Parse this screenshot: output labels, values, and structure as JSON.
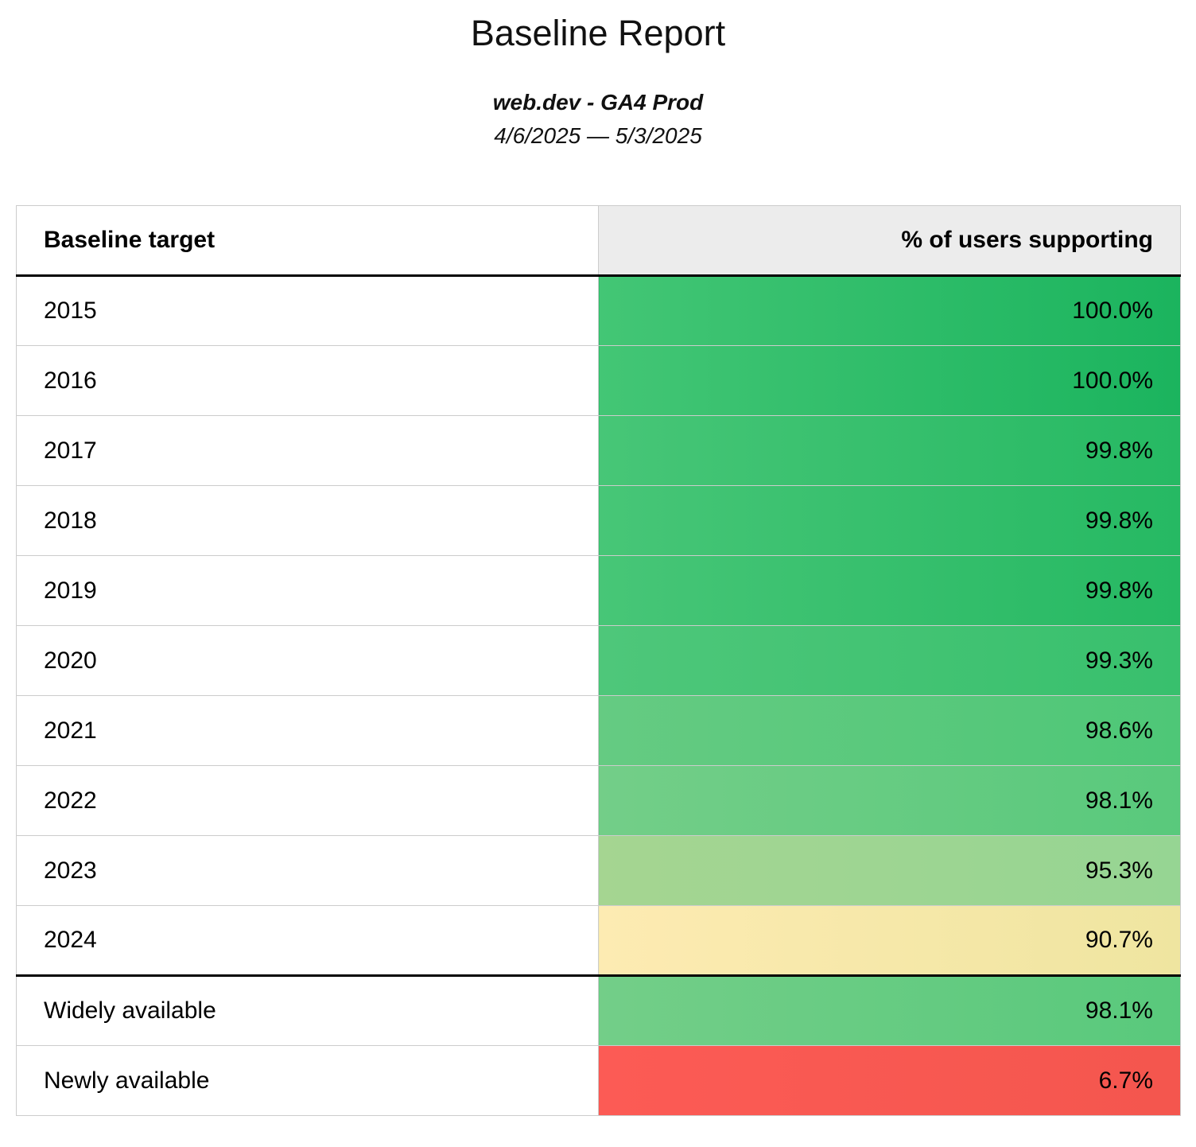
{
  "report": {
    "title": "Baseline Report",
    "subtitle": "web.dev - GA4 Prod",
    "date_range": "4/6/2025 — 5/3/2025"
  },
  "table": {
    "columns": [
      "Baseline target",
      "% of users supporting"
    ],
    "rows": [
      {
        "label": "2015",
        "value": "100.0%",
        "pct": 100.0,
        "color_left": "#43c675",
        "color_right": "#1bb45e",
        "section_end": false
      },
      {
        "label": "2016",
        "value": "100.0%",
        "pct": 100.0,
        "color_left": "#43c675",
        "color_right": "#1bb45e",
        "section_end": false
      },
      {
        "label": "2017",
        "value": "99.8%",
        "pct": 99.8,
        "color_left": "#47c677",
        "color_right": "#26b963",
        "section_end": false
      },
      {
        "label": "2018",
        "value": "99.8%",
        "pct": 99.8,
        "color_left": "#47c677",
        "color_right": "#26b963",
        "section_end": false
      },
      {
        "label": "2019",
        "value": "99.8%",
        "pct": 99.8,
        "color_left": "#47c677",
        "color_right": "#26b963",
        "section_end": false
      },
      {
        "label": "2020",
        "value": "99.3%",
        "pct": 99.3,
        "color_left": "#4ec77a",
        "color_right": "#38c06d",
        "section_end": false
      },
      {
        "label": "2021",
        "value": "98.6%",
        "pct": 98.6,
        "color_left": "#65cb82",
        "color_right": "#4ec777",
        "section_end": false
      },
      {
        "label": "2022",
        "value": "98.1%",
        "pct": 98.1,
        "color_left": "#73ce88",
        "color_right": "#59c97c",
        "section_end": false
      },
      {
        "label": "2023",
        "value": "95.3%",
        "pct": 95.3,
        "color_left": "#a5d591",
        "color_right": "#96d593",
        "section_end": false
      },
      {
        "label": "2024",
        "value": "90.7%",
        "pct": 90.7,
        "color_left": "#fdebb2",
        "color_right": "#efe5a0",
        "section_end": true
      },
      {
        "label": "Widely available",
        "value": "98.1%",
        "pct": 98.1,
        "color_left": "#73ce88",
        "color_right": "#59c97c",
        "section_end": false
      },
      {
        "label": "Newly available",
        "value": "6.7%",
        "pct": 6.7,
        "color_left": "#fc5b55",
        "color_right": "#f4564e",
        "section_end": false
      }
    ]
  },
  "colors": {
    "header_background": "#ececec",
    "thin_border": "#cccccc",
    "thick_border": "#000000",
    "text": "#000000"
  }
}
